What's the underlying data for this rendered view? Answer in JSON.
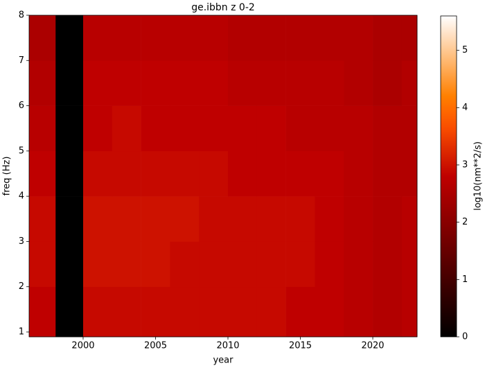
{
  "chart_data": {
    "type": "heatmap",
    "title": "ge.ibbn z 0-2",
    "x_label": "year",
    "y_label": "freq (Hz)",
    "colorbar_label": "log10(nm**2/s)",
    "colormap": "gist_heat",
    "x_edges": [
      1996.27,
      1998.1,
      2000,
      2002,
      2004,
      2006,
      2008,
      2010,
      2012,
      2014,
      2016,
      2018,
      2020,
      2022,
      2023.06
    ],
    "y_edges": [
      0.893,
      2,
      3,
      4,
      5,
      6,
      7,
      8
    ],
    "z": [
      [
        2.8,
        0,
        2.9,
        2.9,
        2.9,
        2.9,
        2.9,
        2.9,
        2.9,
        2.8,
        2.8,
        2.7,
        2.6,
        2.7
      ],
      [
        2.9,
        0,
        3.0,
        3.0,
        3.0,
        2.9,
        2.9,
        2.9,
        2.9,
        2.9,
        2.8,
        2.7,
        2.6,
        2.7
      ],
      [
        2.9,
        0,
        3.0,
        3.0,
        3.0,
        3.0,
        2.9,
        2.9,
        2.9,
        2.9,
        2.8,
        2.7,
        2.6,
        2.7
      ],
      [
        2.8,
        0,
        2.9,
        2.9,
        2.9,
        2.9,
        2.9,
        2.8,
        2.8,
        2.8,
        2.8,
        2.7,
        2.6,
        2.6
      ],
      [
        2.7,
        0,
        2.8,
        2.9,
        2.8,
        2.8,
        2.8,
        2.8,
        2.8,
        2.7,
        2.7,
        2.7,
        2.6,
        2.6
      ],
      [
        2.6,
        0,
        2.8,
        2.8,
        2.8,
        2.8,
        2.8,
        2.7,
        2.7,
        2.7,
        2.7,
        2.6,
        2.5,
        2.6
      ],
      [
        2.5,
        0,
        2.7,
        2.7,
        2.7,
        2.7,
        2.7,
        2.6,
        2.6,
        2.6,
        2.6,
        2.6,
        2.5,
        2.5
      ]
    ],
    "xlim": [
      1996.27,
      2023.06
    ],
    "xticks": [
      2000,
      2005,
      2010,
      2015,
      2020
    ],
    "ylim": [
      0.893,
      8
    ],
    "yticks": [
      1,
      2,
      3,
      4,
      5,
      6,
      7,
      8
    ],
    "clim": [
      0,
      5.6
    ],
    "cticks": [
      0,
      1,
      2,
      3,
      4,
      5
    ]
  }
}
